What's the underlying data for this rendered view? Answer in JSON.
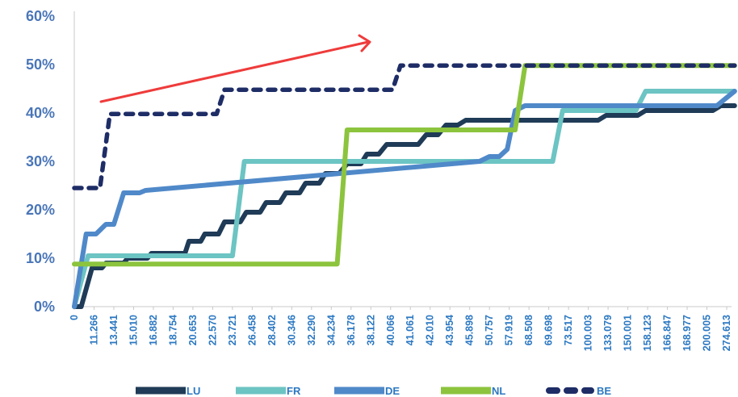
{
  "chart_data": {
    "type": "line",
    "title": "",
    "xlabel": "",
    "ylabel": "",
    "ylim": [
      0,
      60
    ],
    "y_ticks": [
      0,
      10,
      20,
      30,
      40,
      50,
      60
    ],
    "y_tick_format": "%",
    "grid": false,
    "legend_position": "bottom",
    "x_tick_labels": [
      "0",
      "11.266",
      "13.441",
      "15.010",
      "16.882",
      "18.754",
      "20.653",
      "22.570",
      "23.721",
      "26.458",
      "28.402",
      "30.346",
      "32.290",
      "34.234",
      "36.178",
      "38.122",
      "40.066",
      "41.061",
      "42.010",
      "43.954",
      "45.898",
      "50.757",
      "57.919",
      "68.508",
      "69.698",
      "73.517",
      "100.003",
      "133.079",
      "150.001",
      "158.123",
      "166.847",
      "168.977",
      "200.005",
      "274.613"
    ],
    "x_max": 33,
    "annotation": {
      "type": "arrow",
      "color": "#ef3b3b"
    },
    "series": [
      {
        "name": "LU",
        "color": "#1f3b57",
        "style": "solid",
        "points": [
          [
            0,
            0
          ],
          [
            0.35,
            0
          ],
          [
            0.9,
            8
          ],
          [
            1.4,
            8
          ],
          [
            1.6,
            9
          ],
          [
            2.5,
            9
          ],
          [
            2.7,
            10
          ],
          [
            3.7,
            10
          ],
          [
            3.9,
            11
          ],
          [
            5.6,
            11
          ],
          [
            5.8,
            13.5
          ],
          [
            6.4,
            13.5
          ],
          [
            6.6,
            15
          ],
          [
            7.3,
            15
          ],
          [
            7.6,
            17.5
          ],
          [
            8.4,
            17.5
          ],
          [
            8.7,
            19.5
          ],
          [
            9.4,
            19.5
          ],
          [
            9.7,
            21.5
          ],
          [
            10.4,
            21.5
          ],
          [
            10.7,
            23.5
          ],
          [
            11.4,
            23.5
          ],
          [
            11.7,
            25.5
          ],
          [
            12.4,
            25.5
          ],
          [
            12.7,
            27.5
          ],
          [
            13.4,
            27.5
          ],
          [
            13.8,
            29.5
          ],
          [
            14.5,
            29.5
          ],
          [
            14.8,
            31.5
          ],
          [
            15.4,
            31.5
          ],
          [
            15.8,
            33.5
          ],
          [
            17.4,
            33.5
          ],
          [
            17.8,
            35.5
          ],
          [
            18.4,
            35.5
          ],
          [
            18.8,
            37.5
          ],
          [
            19.4,
            37.5
          ],
          [
            19.8,
            38.5
          ],
          [
            26.5,
            38.5
          ],
          [
            26.9,
            39.5
          ],
          [
            28.5,
            39.5
          ],
          [
            28.9,
            40.5
          ],
          [
            32.3,
            40.5
          ],
          [
            32.7,
            41.5
          ],
          [
            33.4,
            41.5
          ]
        ]
      },
      {
        "name": "FR",
        "color": "#6cc4c3",
        "style": "solid",
        "points": [
          [
            0,
            0
          ],
          [
            0.7,
            10.5
          ],
          [
            8,
            10.5
          ],
          [
            8.6,
            30
          ],
          [
            24.2,
            30
          ],
          [
            24.7,
            40.5
          ],
          [
            28.4,
            40.5
          ],
          [
            28.9,
            44.5
          ],
          [
            33.4,
            44.5
          ]
        ]
      },
      {
        "name": "DE",
        "color": "#5089c9",
        "style": "solid",
        "points": [
          [
            0,
            0
          ],
          [
            0.6,
            15
          ],
          [
            1.1,
            15
          ],
          [
            1.6,
            17
          ],
          [
            2,
            17
          ],
          [
            2.5,
            23.5
          ],
          [
            3.3,
            23.5
          ],
          [
            3.6,
            24
          ],
          [
            20.5,
            30
          ],
          [
            21,
            31
          ],
          [
            21.5,
            31
          ],
          [
            21.9,
            32.5
          ],
          [
            22.3,
            40.5
          ],
          [
            22.8,
            41.5
          ],
          [
            32.5,
            41.5
          ],
          [
            33.4,
            44.5
          ]
        ]
      },
      {
        "name": "NL",
        "color": "#8cc43e",
        "style": "solid",
        "points": [
          [
            0,
            8.8
          ],
          [
            13.3,
            8.8
          ],
          [
            13.8,
            36.5
          ],
          [
            22.3,
            36.5
          ],
          [
            22.8,
            49.8
          ],
          [
            33.4,
            49.8
          ]
        ]
      },
      {
        "name": "BE",
        "color": "#1e2d66",
        "style": "dashed",
        "points": [
          [
            0,
            24.5
          ],
          [
            1.3,
            24.5
          ],
          [
            1.8,
            39.8
          ],
          [
            7.2,
            39.8
          ],
          [
            7.6,
            44.8
          ],
          [
            16.1,
            44.8
          ],
          [
            16.5,
            49.8
          ],
          [
            33.4,
            49.8
          ]
        ]
      }
    ]
  }
}
